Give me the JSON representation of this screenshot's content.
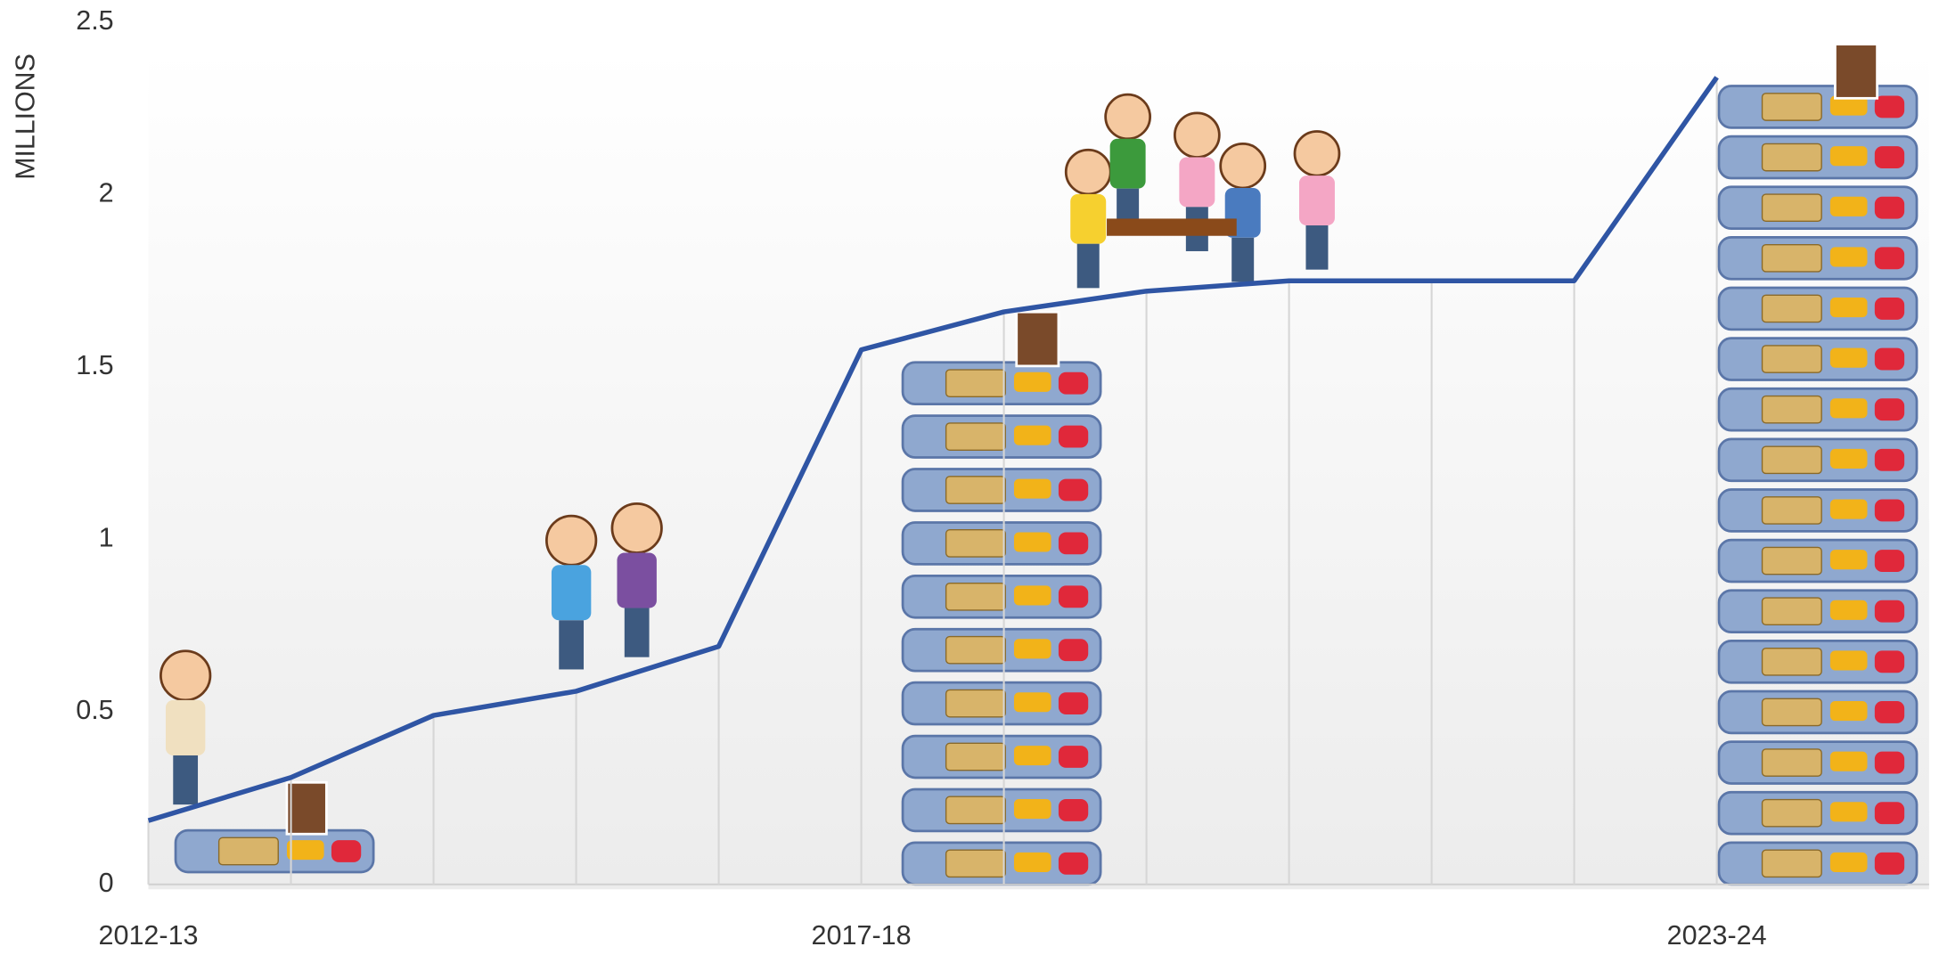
{
  "chart_data": {
    "type": "line",
    "y_label": "MILLIONS",
    "categories": [
      "2012-13",
      null,
      null,
      null,
      null,
      "2017-18",
      null,
      null,
      null,
      null,
      null,
      "2023-24"
    ],
    "series": [
      {
        "color": "#2f55a4",
        "values": [
          0.185,
          0.31,
          0.49,
          0.56,
          0.69,
          1.55,
          1.66,
          1.72,
          1.75,
          1.75,
          1.75,
          2.34
        ]
      }
    ],
    "ylim": [
      0,
      2.5
    ],
    "yticks": [
      0,
      0.5,
      1,
      1.5,
      2,
      2.5
    ],
    "drop_lines": true
  }
}
